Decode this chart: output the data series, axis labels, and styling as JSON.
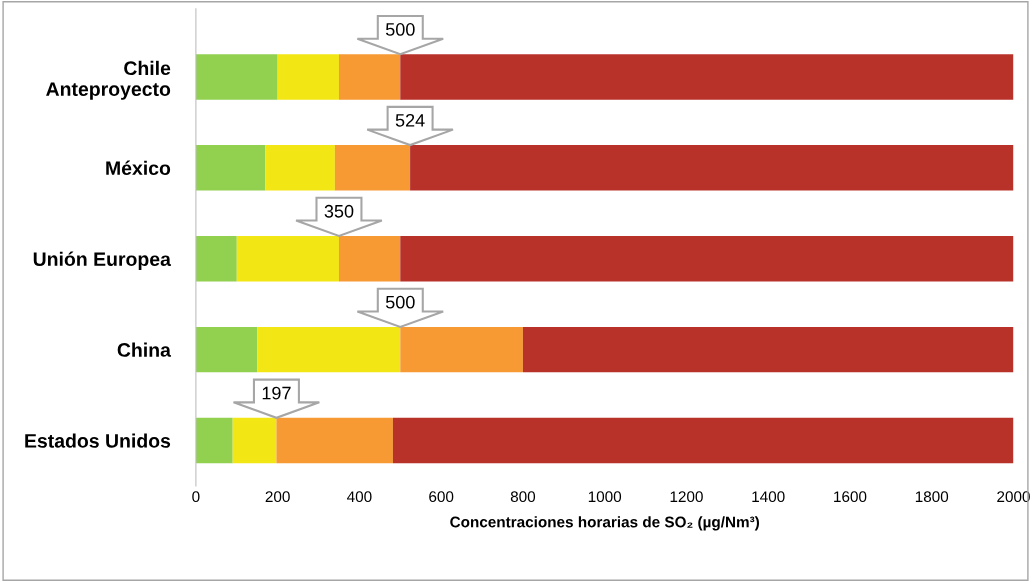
{
  "chart_data": {
    "type": "bar",
    "orientation": "horizontal",
    "stacked": true,
    "categories": [
      "Chile\nAnteproyecto",
      "México",
      "Unión Europea",
      "China",
      "Estados Unidos"
    ],
    "series": [
      {
        "color": "#92d050",
        "values": [
          200,
          170,
          100,
          150,
          90
        ]
      },
      {
        "color": "#f2e614",
        "values": [
          150,
          170,
          250,
          350,
          107
        ]
      },
      {
        "color": "#f79a34",
        "values": [
          150,
          184,
          150,
          300,
          285
        ]
      },
      {
        "color": "#b8322a",
        "values": [
          1500,
          1476,
          1500,
          1200,
          1518
        ]
      }
    ],
    "xlabel": "Concentraciones horarias de SO₂ (µg/Nm³)",
    "xlim": [
      0,
      2000
    ],
    "xticks": [
      0,
      200,
      400,
      600,
      800,
      1000,
      1200,
      1400,
      1600,
      1800,
      2000
    ],
    "grid": false,
    "legend": false,
    "annotations": [
      {
        "text": "500",
        "x": 500,
        "y": "Chile\nAnteproyecto"
      },
      {
        "text": "524",
        "x": 524,
        "y": "México"
      },
      {
        "text": "350",
        "x": 350,
        "y": "Unión Europea"
      },
      {
        "text": "500",
        "x": 500,
        "y": "China"
      },
      {
        "text": "197",
        "x": 197,
        "y": "Estados Unidos"
      }
    ]
  }
}
